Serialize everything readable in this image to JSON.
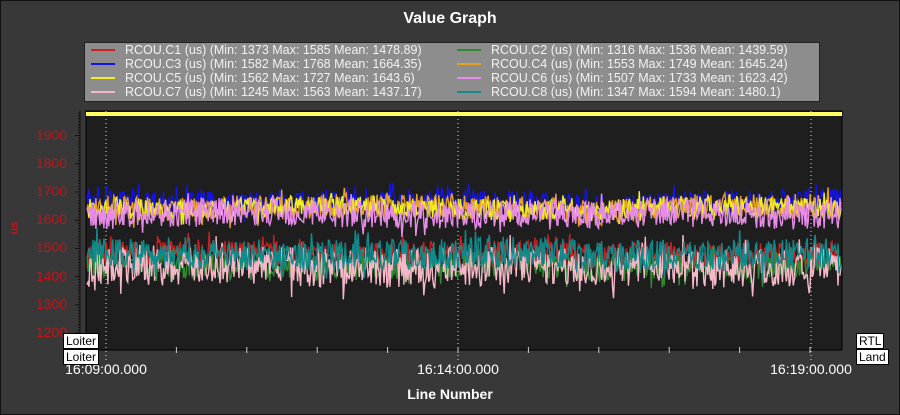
{
  "chart_data": {
    "type": "line",
    "title": "Value Graph",
    "xlabel": "Line Number",
    "ylabel": "us",
    "ylim": [
      1140,
      1987
    ],
    "xlim": [
      "16:08:46.6",
      "16:19:43"
    ],
    "y_ticks": [
      "1900",
      "1800",
      "1700",
      "1600",
      "1500",
      "1400",
      "1300",
      "1200"
    ],
    "x_ticks": [
      "16:09:00.000",
      "16:14:00.000",
      "16:19:00.000"
    ],
    "grid": "vertical dotted at major x ticks",
    "legend_position": "top",
    "series": [
      {
        "name": "RCOU.C1 (us) (Min: 1373 Max: 1585 Mean: 1478.89)",
        "min": 1373,
        "max": 1585,
        "mean": 1478.89,
        "color": "#cc1f1f"
      },
      {
        "name": "RCOU.C2 (us) (Min: 1316 Max: 1536 Mean: 1439.59)",
        "min": 1316,
        "max": 1536,
        "mean": 1439.59,
        "color": "#2f8a2f"
      },
      {
        "name": "RCOU.C3 (us) (Min: 1582 Max: 1768 Mean: 1664.35)",
        "min": 1582,
        "max": 1768,
        "mean": 1664.35,
        "color": "#1414e6"
      },
      {
        "name": "RCOU.C4 (us) (Min: 1553 Max: 1749 Mean: 1645.24)",
        "min": 1553,
        "max": 1749,
        "mean": 1645.24,
        "color": "#e8a020"
      },
      {
        "name": "RCOU.C5 (us) (Min: 1562 Max: 1727 Mean: 1643.6)",
        "min": 1562,
        "max": 1727,
        "mean": 1643.6,
        "color": "#f0f020"
      },
      {
        "name": "RCOU.C6 (us) (Min: 1507 Max: 1733 Mean: 1623.42)",
        "min": 1507,
        "max": 1733,
        "mean": 1623.42,
        "color": "#e88ae8"
      },
      {
        "name": "RCOU.C7 (us) (Min: 1245 Max: 1563 Mean: 1437.17)",
        "min": 1245,
        "max": 1563,
        "mean": 1437.17,
        "color": "#f5b8c8"
      },
      {
        "name": "RCOU.C8 (us) (Min: 1347 Max: 1594 Mean: 1480.1)",
        "min": 1347,
        "max": 1594,
        "mean": 1480.1,
        "color": "#108a8a"
      }
    ],
    "modes": {
      "start_top": "Loiter",
      "start_bottom": "Loiter",
      "end_top": "RTL",
      "end_bottom": "Land"
    },
    "top_band_color": "#ffff66"
  }
}
